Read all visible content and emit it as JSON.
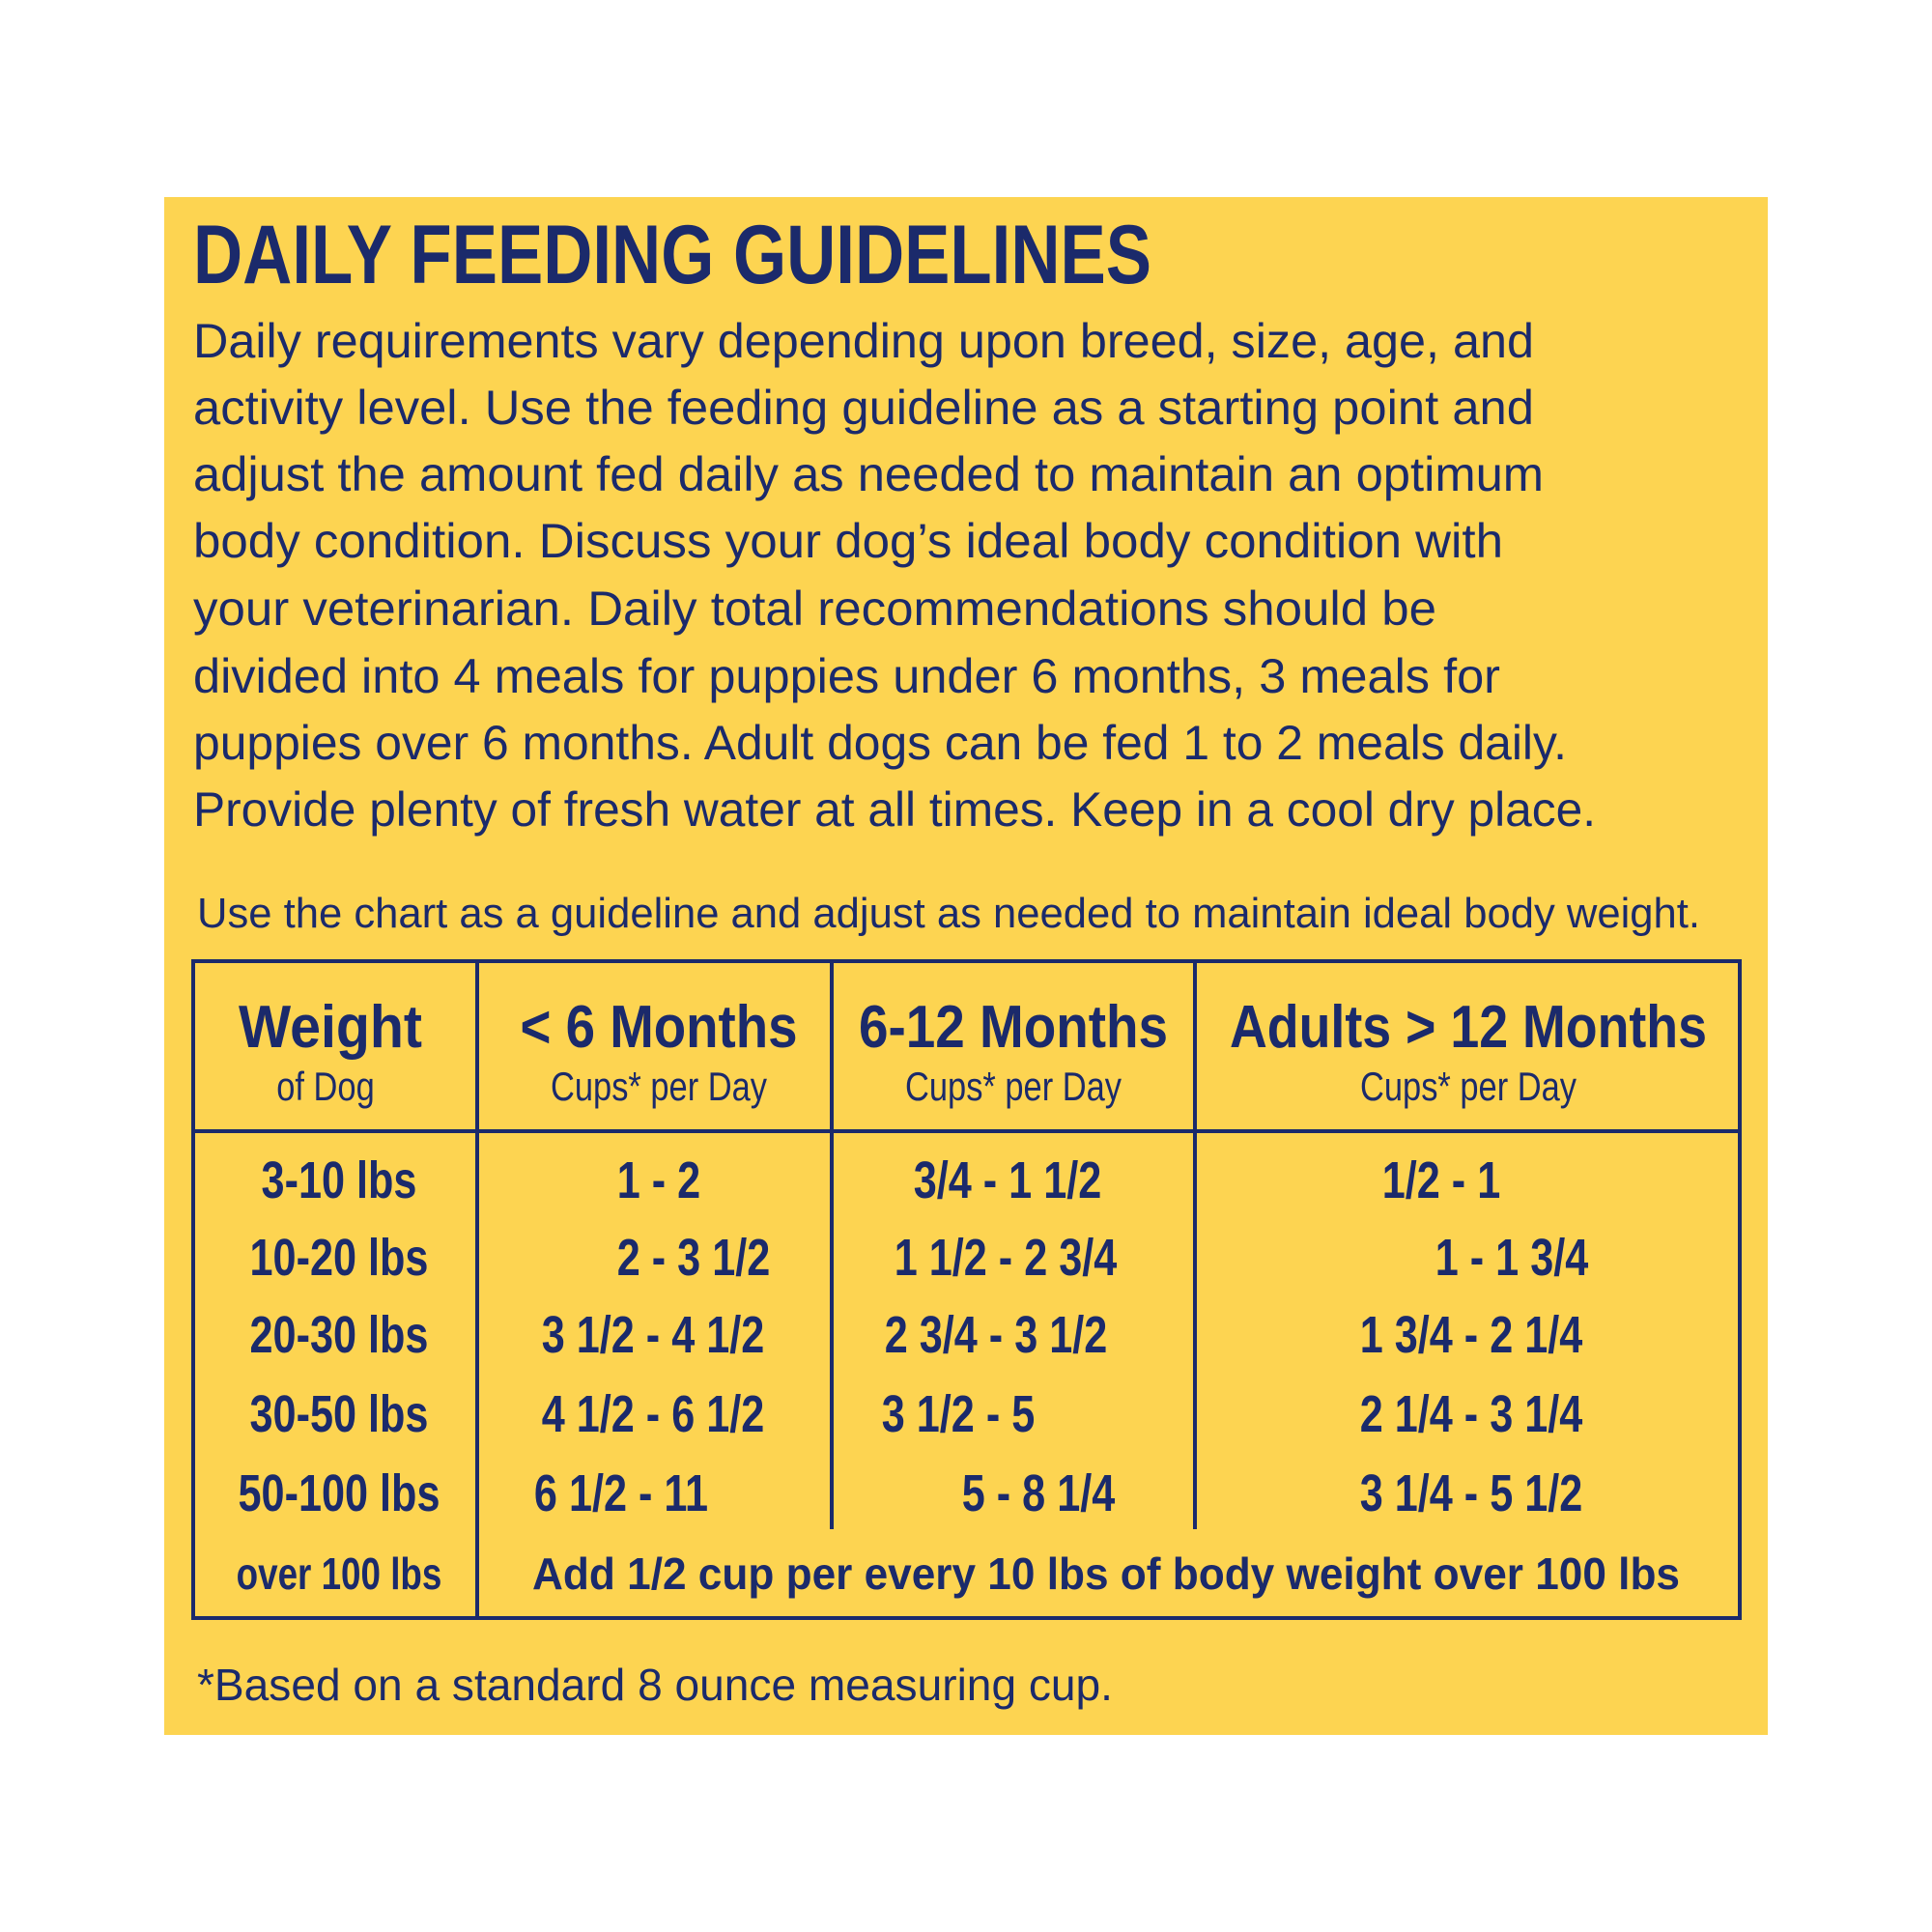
{
  "title": "DAILY FEEDING GUIDELINES",
  "intro": [
    "Daily requirements vary depending upon breed, size, age, and",
    "activity level. Use the feeding guideline as a starting point and",
    "adjust the amount fed daily as needed to maintain an optimum",
    "body condition. Discuss your dog’s ideal body condition with",
    "your veterinarian. Daily total recommendations should be",
    "divided into 4 meals for puppies under 6 months, 3 meals for",
    "puppies over 6 months. Adult dogs can be fed 1 to 2 meals daily.",
    "Provide plenty of fresh water at all times. Keep in a cool dry place."
  ],
  "note": "Use the chart as a guideline and adjust as needed to maintain ideal body weight.",
  "table": {
    "header": [
      {
        "title": "Weight",
        "subtitle": "of Dog"
      },
      {
        "title": "< 6 Months",
        "subtitle": "Cups* per Day"
      },
      {
        "title": "6-12 Months",
        "subtitle": "Cups* per Day"
      },
      {
        "title": "Adults > 12 Months",
        "subtitle": "Cups* per Day"
      }
    ],
    "rows": [
      [
        "3-10 lbs",
        "1 - 2",
        "3/4 - 1 1/2",
        "1/2 - 1"
      ],
      [
        "10-20 lbs",
        "2 - 3 1/2",
        "1 1/2 - 2 3/4",
        "1 - 1 3/4"
      ],
      [
        "20-30 lbs",
        "3 1/2 - 4 1/2",
        "2 3/4 - 3 1/2",
        "1 3/4 - 2 1/4"
      ],
      [
        "30-50 lbs",
        "4 1/2 - 6 1/2",
        "3 1/2 - 5",
        "2 1/4 - 3 1/4"
      ],
      [
        "50-100 lbs",
        "6 1/2 - 11",
        "5 - 8 1/4",
        "3 1/4 - 5 1/2"
      ]
    ],
    "last_row": [
      "over 100 lbs",
      "Add 1/2 cup per every 10 lbs of body weight over 100 lbs"
    ]
  },
  "footnote": "*Based on a standard 8 ounce measuring cup."
}
